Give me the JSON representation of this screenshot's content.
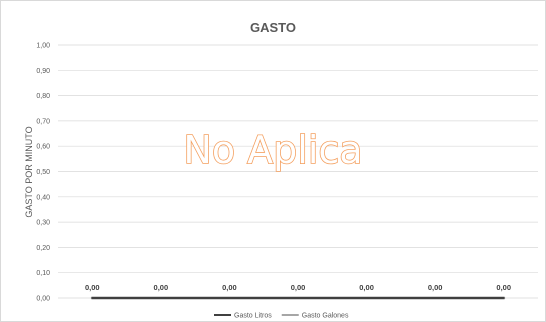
{
  "chart_data": {
    "type": "line",
    "title": "GASTO",
    "ylabel": "GASTO POR MINUTO",
    "xlabel": "",
    "ylim": [
      0,
      1
    ],
    "yticks": [
      "0,00",
      "0,10",
      "0,20",
      "0,30",
      "0,40",
      "0,50",
      "0,60",
      "0,70",
      "0,80",
      "0,90",
      "1,00"
    ],
    "grid": true,
    "legend_position": "bottom",
    "series": [
      {
        "name": "Gasto Litros",
        "color": "#404040",
        "values": [
          0,
          0,
          0,
          0,
          0,
          0,
          0
        ]
      },
      {
        "name": "Gasto Galones",
        "color": "#a6a6a6",
        "values": [
          0,
          0,
          0,
          0,
          0,
          0,
          0
        ]
      }
    ],
    "data_labels": [
      "0,00",
      "0,00",
      "0,00",
      "0,00",
      "0,00",
      "0,00",
      "0,00"
    ]
  },
  "overlay": {
    "text": "No Aplica",
    "color": "#f4a060"
  }
}
